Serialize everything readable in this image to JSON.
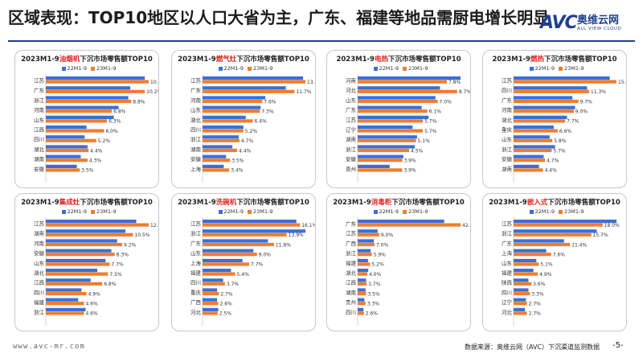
{
  "title": "区域表现：TOP10地区以人口大省为主，广东、福建等地品需厨电增长明显",
  "logo": {
    "mark": "AVC",
    "cn": "奥维云网",
    "en": "ALL VIEW CLOUD"
  },
  "footer": {
    "url": "www.avc-mr.com",
    "source": "数据来源：奥维云网（AVC）下沉渠道监测数据",
    "page": "-5-"
  },
  "colors": {
    "series_22": "#3b6fd6",
    "series_23": "#f07d2e",
    "highlight": "#e0201a",
    "brand": "#1f3f8f"
  },
  "chart_data": [
    {
      "type": "bar",
      "title_pre": "2023M1-9",
      "title_hl": "油烟机",
      "title_post": "下沉市场零售额TOP10",
      "legend": [
        "22M1-9",
        "23M1-9"
      ],
      "categories": [
        "江苏",
        "广东",
        "浙江",
        "河南",
        "山东",
        "江西",
        "四川",
        "湖北",
        "湖南",
        "安徽"
      ],
      "series": [
        {
          "name": "22M1-9",
          "values": [
            10.2,
            8.7,
            8.5,
            7.5,
            7.0,
            4.2,
            4.0,
            4.3,
            3.6,
            3.2
          ]
        },
        {
          "name": "23M1-9",
          "values": [
            10.6,
            10.2,
            8.8,
            6.8,
            6.3,
            6.0,
            5.2,
            4.4,
            4.3,
            3.5
          ]
        }
      ],
      "labels": [
        "10.6%",
        "10.2%",
        "8.8%",
        "6.8%",
        "6.3%",
        "6.0%",
        "5.2%",
        "4.4%",
        "4.3%",
        "3.5%"
      ]
    },
    {
      "type": "bar",
      "title_pre": "2023M1-9",
      "title_hl": "燃气灶",
      "title_post": "下沉市场零售额TOP10",
      "legend": [
        "22M1-9",
        "23M1-9"
      ],
      "categories": [
        "江苏",
        "广东",
        "河南",
        "山东",
        "湖北",
        "四川",
        "浙江",
        "湖南",
        "安徽",
        "上海"
      ],
      "series": [
        {
          "name": "22M1-9",
          "values": [
            12.8,
            10.6,
            8.0,
            7.4,
            5.5,
            5.2,
            4.6,
            3.8,
            3.0,
            2.7
          ]
        },
        {
          "name": "23M1-9",
          "values": [
            13.1,
            11.7,
            7.6,
            7.3,
            6.4,
            5.2,
            4.7,
            4.4,
            3.5,
            3.4
          ]
        }
      ],
      "labels": [
        "13.1%",
        "11.7%",
        "7.6%",
        "7.3%",
        "6.4%",
        "5.2%",
        "4.7%",
        "4.4%",
        "3.5%",
        "3.4%"
      ]
    },
    {
      "type": "bar",
      "title_pre": "2023M1-9",
      "title_hl": "电热",
      "title_post": "下沉市场零售额TOP10",
      "legend": [
        "22M1-9",
        "23M1-9"
      ],
      "categories": [
        "河南",
        "河北",
        "山东",
        "广东",
        "江苏",
        "辽宁",
        "湖南",
        "浙江",
        "安徽",
        "贵州"
      ],
      "series": [
        {
          "name": "22M1-9",
          "values": [
            9.0,
            7.2,
            6.8,
            5.6,
            6.2,
            4.8,
            5.2,
            5.0,
            4.0,
            2.8
          ]
        },
        {
          "name": "23M1-9",
          "values": [
            7.8,
            8.7,
            7.0,
            6.1,
            5.7,
            5.7,
            5.1,
            4.5,
            3.9,
            3.9
          ]
        }
      ],
      "labels": [
        "7.8%",
        "8.7%",
        "7.0%",
        "6.1%",
        "5.7%",
        "5.7%",
        "5.1%",
        "4.5%",
        "3.9%",
        "3.9%"
      ]
    },
    {
      "type": "bar",
      "title_pre": "2023M1-9",
      "title_hl": "燃热",
      "title_post": "下沉市场零售额TOP10",
      "legend": [
        "22M1-9",
        "23M1-9"
      ],
      "categories": [
        "江苏",
        "四川",
        "广东",
        "河南",
        "湖北",
        "重庆",
        "山东",
        "浙江",
        "安徽",
        "湖南"
      ],
      "series": [
        {
          "name": "22M1-9",
          "values": [
            14.4,
            11.0,
            8.8,
            9.2,
            8.0,
            6.0,
            5.4,
            6.2,
            4.5,
            3.8
          ]
        },
        {
          "name": "23M1-9",
          "values": [
            15.4,
            11.3,
            9.7,
            9.0,
            7.7,
            6.6,
            5.8,
            5.7,
            4.7,
            4.4
          ]
        }
      ],
      "labels": [
        "15.4%",
        "11.3%",
        "9.7%",
        "9.0%",
        "7.7%",
        "6.6%",
        "5.8%",
        "5.7%",
        "4.7%",
        "4.4%"
      ]
    },
    {
      "type": "bar",
      "title_pre": "2023M1-9",
      "title_hl": "集成灶",
      "title_post": "下沉市场零售额TOP10",
      "legend": [
        "22M1-9",
        "23M1-9"
      ],
      "categories": [
        "江苏",
        "湖南",
        "河南",
        "安徽",
        "山东",
        "湖北",
        "江西",
        "四川",
        "福建",
        "浙江"
      ],
      "series": [
        {
          "name": "22M1-9",
          "values": [
            10.9,
            9.6,
            8.6,
            7.9,
            7.2,
            6.2,
            5.4,
            4.3,
            3.9,
            4.8
          ]
        },
        {
          "name": "23M1-9",
          "values": [
            12.4,
            10.5,
            9.2,
            8.3,
            7.7,
            7.5,
            6.8,
            4.9,
            4.6,
            4.6
          ]
        }
      ],
      "labels": [
        "12.4%",
        "10.5%",
        "9.2%",
        "8.3%",
        "7.7%",
        "7.5%",
        "6.8%",
        "4.9%",
        "4.6%",
        "4.6%"
      ]
    },
    {
      "type": "bar",
      "title_pre": "2023M1-9",
      "title_hl": "洗碗机",
      "title_post": "下沉市场零售额TOP10",
      "legend": [
        "22M1-9",
        "23M1-9"
      ],
      "categories": [
        "江苏",
        "浙江",
        "广东",
        "山东",
        "上海",
        "福建",
        "四川",
        "重庆",
        "广西",
        "河北"
      ],
      "series": [
        {
          "name": "22M1-9",
          "values": [
            15.5,
            17.0,
            10.8,
            8.4,
            6.6,
            4.7,
            3.4,
            2.4,
            2.4,
            2.6
          ]
        },
        {
          "name": "23M1-9",
          "values": [
            16.1,
            13.9,
            11.8,
            9.0,
            7.7,
            5.4,
            3.7,
            2.7,
            2.6,
            2.5
          ]
        }
      ],
      "labels": [
        "16.1%",
        "13.9%",
        "11.8%",
        "9.0%",
        "7.7%",
        "5.4%",
        "3.7%",
        "2.7%",
        "2.6%",
        "2.5%"
      ]
    },
    {
      "type": "bar",
      "title_pre": "2023M1-9",
      "title_hl": "消毒柜",
      "title_post": "下沉市场零售额TOP10",
      "legend": [
        "22M1-9",
        "23M1-9"
      ],
      "categories": [
        "广东",
        "江苏",
        "广西",
        "浙江",
        "福建",
        "湖北",
        "江西",
        "湖南",
        "贵州",
        "四川"
      ],
      "series": [
        {
          "name": "22M1-9",
          "values": [
            36.0,
            8.3,
            6.7,
            5.4,
            4.3,
            4.4,
            3.5,
            3.3,
            2.8,
            2.4
          ]
        },
        {
          "name": "23M1-9",
          "values": [
            42.8,
            9.0,
            7.0,
            5.9,
            5.2,
            4.0,
            3.7,
            3.5,
            3.3,
            2.6
          ]
        }
      ],
      "labels": [
        "42.8%",
        "9.0%",
        "7.0%",
        "5.9%",
        "5.2%",
        "4.0%",
        "3.7%",
        "3.5%",
        "3.3%",
        "2.6%"
      ]
    },
    {
      "type": "bar",
      "title_pre": "2023M1-9",
      "title_hl": "嵌入式",
      "title_post": "下沉市场零售额TOP10",
      "legend": [
        "22M1-9",
        "23M1-9"
      ],
      "categories": [
        "江苏",
        "浙江",
        "广东",
        "上海",
        "山东",
        "福建",
        "陕西",
        "四川",
        "辽宁",
        "河北"
      ],
      "series": [
        {
          "name": "22M1-9",
          "values": [
            20.8,
            16.8,
            10.2,
            6.6,
            4.6,
            4.0,
            3.0,
            3.0,
            2.5,
            2.3
          ]
        },
        {
          "name": "23M1-9",
          "values": [
            18.0,
            15.7,
            11.4,
            7.6,
            5.1,
            4.9,
            3.6,
            3.3,
            2.7,
            2.7
          ]
        }
      ],
      "labels": [
        "18.0%",
        "15.7%",
        "11.4%",
        "7.6%",
        "5.1%",
        "4.9%",
        "3.6%",
        "3.3%",
        "2.7%",
        "2.7%"
      ]
    }
  ]
}
